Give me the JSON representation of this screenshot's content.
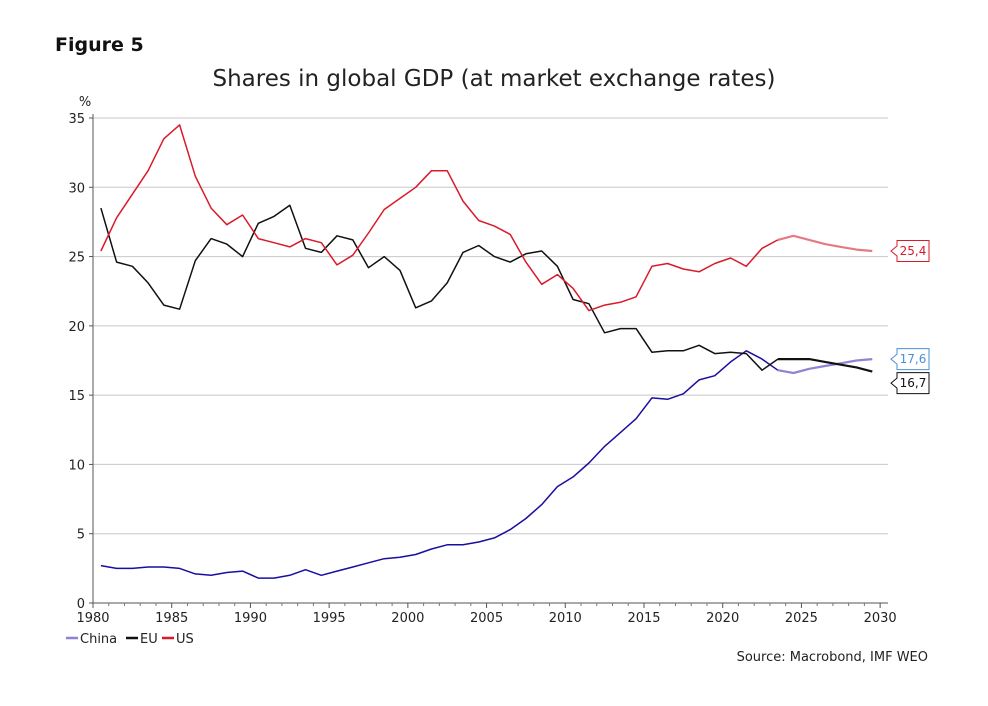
{
  "figure_label": "Figure 5",
  "source": "Source: Macrobond, IMF WEO",
  "chart_data": {
    "type": "line",
    "title": "Shares in global GDP (at market exchange rates)",
    "ylabel": "%",
    "xlabel": "",
    "xlim": [
      1980,
      2030.5
    ],
    "ylim": [
      0,
      35
    ],
    "x_ticks": [
      1980,
      1985,
      1990,
      1995,
      2000,
      2005,
      2010,
      2015,
      2020,
      2025,
      2030
    ],
    "y_ticks": [
      0,
      5,
      10,
      15,
      20,
      25,
      30,
      35
    ],
    "grid": true,
    "legend_position": "bottom-left",
    "forecast_from": 2023.5,
    "x": [
      1980.5,
      1981.5,
      1982.5,
      1983.5,
      1984.5,
      1985.5,
      1986.5,
      1987.5,
      1988.5,
      1989.5,
      1990.5,
      1991.5,
      1992.5,
      1993.5,
      1994.5,
      1995.5,
      1996.5,
      1997.5,
      1998.5,
      1999.5,
      2000.5,
      2001.5,
      2002.5,
      2003.5,
      2004.5,
      2005.5,
      2006.5,
      2007.5,
      2008.5,
      2009.5,
      2010.5,
      2011.5,
      2012.5,
      2013.5,
      2014.5,
      2015.5,
      2016.5,
      2017.5,
      2018.5,
      2019.5,
      2020.5,
      2021.5,
      2022.5,
      2023.5,
      2024.5,
      2025.5,
      2026.5,
      2027.5,
      2028.5,
      2029.5
    ],
    "series": [
      {
        "name": "China",
        "color": "#1a0ea0",
        "forecast_color": "#8f83d6",
        "callout": "17,6",
        "callout_color": "#4a90d9",
        "values": [
          2.7,
          2.5,
          2.5,
          2.6,
          2.6,
          2.5,
          2.1,
          2.0,
          2.2,
          2.3,
          1.8,
          1.8,
          2.0,
          2.4,
          2.0,
          2.3,
          2.6,
          2.9,
          3.2,
          3.3,
          3.5,
          3.9,
          4.2,
          4.2,
          4.4,
          4.7,
          5.3,
          6.1,
          7.1,
          8.4,
          9.1,
          10.1,
          11.3,
          12.3,
          13.3,
          14.8,
          14.7,
          15.1,
          16.1,
          16.4,
          17.4,
          18.2,
          17.6,
          16.8,
          16.6,
          16.9,
          17.1,
          17.3,
          17.5,
          17.6
        ]
      },
      {
        "name": "EU",
        "color": "#111111",
        "forecast_color": "#111111",
        "callout": "16,7",
        "callout_color": "#111111",
        "values": [
          28.5,
          24.6,
          24.3,
          23.1,
          21.5,
          21.2,
          24.7,
          26.3,
          25.9,
          25.0,
          27.4,
          27.9,
          28.7,
          25.6,
          25.3,
          26.5,
          26.2,
          24.2,
          25.0,
          24.0,
          21.3,
          21.8,
          23.1,
          25.3,
          25.8,
          25.0,
          24.6,
          25.2,
          25.4,
          24.3,
          21.9,
          21.6,
          19.5,
          19.8,
          19.8,
          18.1,
          18.2,
          18.2,
          18.6,
          18.0,
          18.1,
          18.0,
          16.8,
          17.6,
          17.6,
          17.6,
          17.4,
          17.2,
          17.0,
          16.7
        ]
      },
      {
        "name": "US",
        "color": "#d91a2a",
        "forecast_color": "#e57a84",
        "callout": "25,4",
        "callout_color": "#d91a2a",
        "values": [
          25.4,
          27.8,
          29.5,
          31.2,
          33.5,
          34.5,
          30.8,
          28.5,
          27.3,
          28.0,
          26.3,
          26.0,
          25.7,
          26.3,
          26.0,
          24.4,
          25.1,
          26.7,
          28.4,
          29.2,
          30.0,
          31.2,
          31.2,
          29.0,
          27.6,
          27.2,
          26.6,
          24.6,
          23.0,
          23.7,
          22.7,
          21.1,
          21.5,
          21.7,
          22.1,
          24.3,
          24.5,
          24.1,
          23.9,
          24.5,
          24.9,
          24.3,
          25.6,
          26.2,
          26.5,
          26.2,
          25.9,
          25.7,
          25.5,
          25.4
        ]
      }
    ]
  }
}
